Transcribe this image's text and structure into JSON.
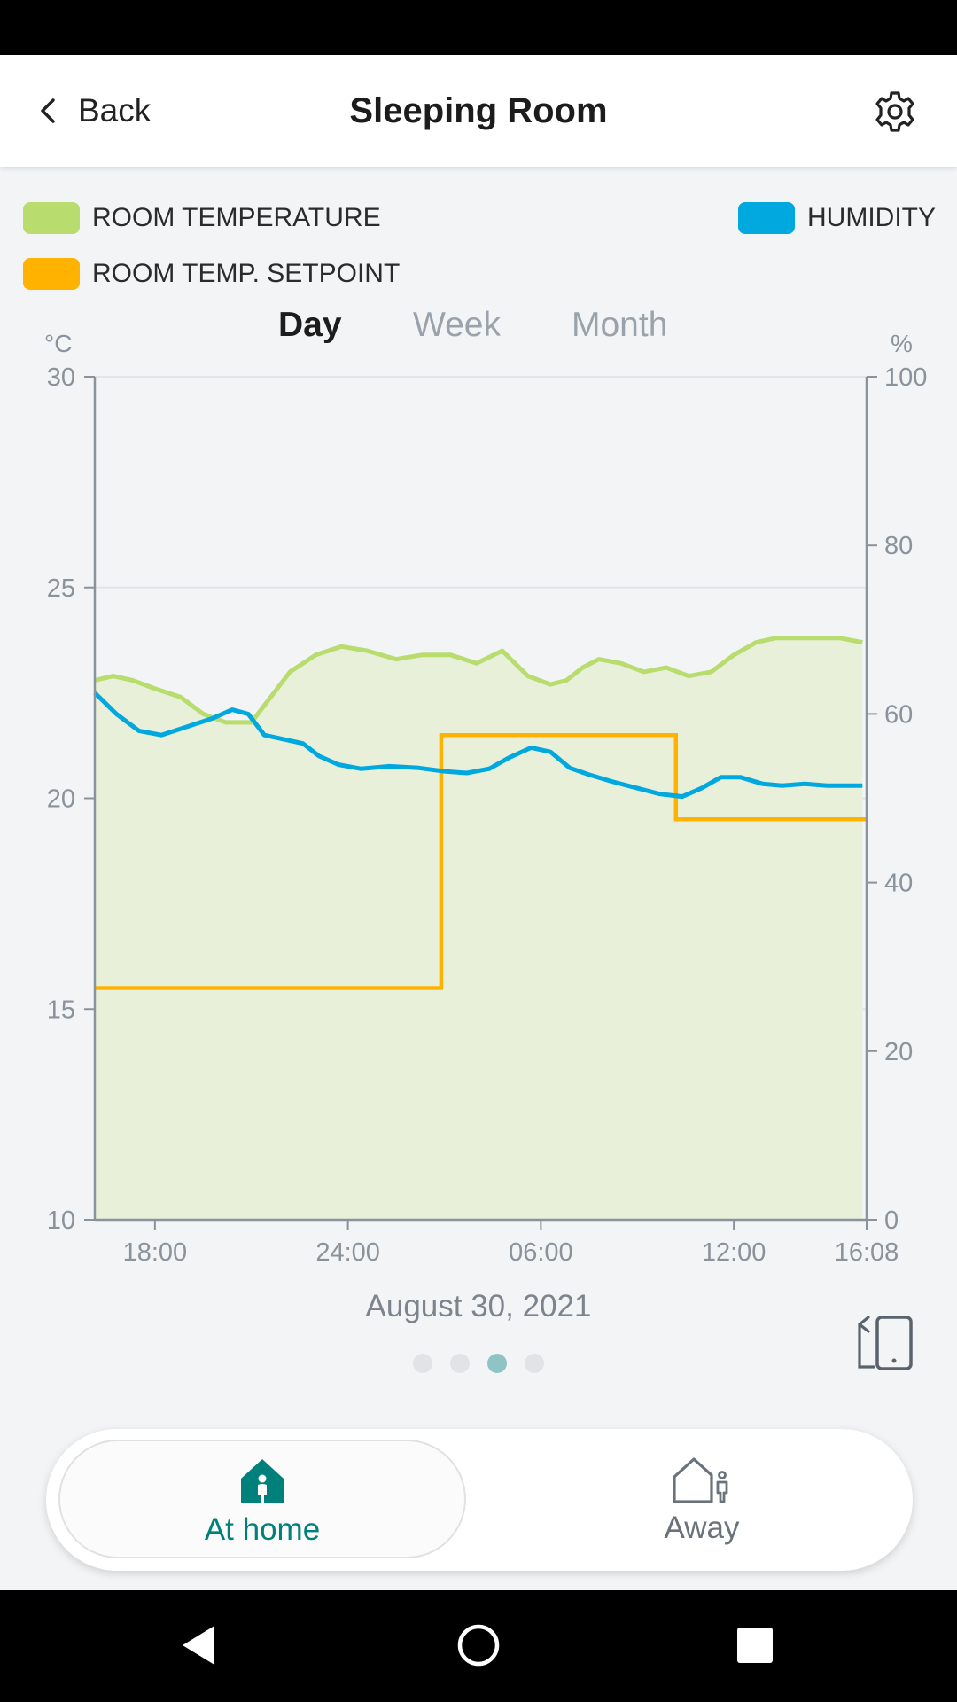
{
  "header": {
    "back_label": "Back",
    "title": "Sleeping Room"
  },
  "legend": {
    "room_temperature": {
      "label": "ROOM TEMPERATURE",
      "color": "#b8dc6e"
    },
    "humidity": {
      "label": "HUMIDITY",
      "color": "#00a8e0"
    },
    "setpoint": {
      "label": "ROOM TEMP. SETPOINT",
      "color": "#ffb300"
    }
  },
  "tabs": [
    {
      "label": "Day",
      "active": true
    },
    {
      "label": "Week",
      "active": false
    },
    {
      "label": "Month",
      "active": false
    }
  ],
  "chart_data": {
    "type": "line",
    "left_axis": {
      "unit": "°C",
      "ylim": [
        10,
        30
      ],
      "ticks": [
        "30",
        "25",
        "20",
        "15",
        "10"
      ]
    },
    "right_axis": {
      "unit": "%",
      "ylim": [
        0,
        100
      ],
      "ticks": [
        "100",
        "80",
        "60",
        "40",
        "20",
        "0"
      ]
    },
    "x_ticks": [
      "18:00",
      "24:00",
      "06:00",
      "12:00",
      "16:08"
    ],
    "x_range_hours": [
      16.13,
      40.13
    ],
    "grid": "horizontal",
    "series": [
      {
        "name": "ROOM TEMPERATURE",
        "axis": "left",
        "color": "#b8dc6e",
        "fill": "#e8f0da",
        "x": [
          16.13,
          16.7,
          17.3,
          18.0,
          18.8,
          19.5,
          20.2,
          21.0,
          21.6,
          22.2,
          23.0,
          23.8,
          24.6,
          25.5,
          26.3,
          27.2,
          28.0,
          28.8,
          29.6,
          30.3,
          30.8,
          31.3,
          31.8,
          32.5,
          33.2,
          33.9,
          34.6,
          35.3,
          36.0,
          36.7,
          37.3,
          37.9,
          38.6,
          39.3,
          40.0
        ],
        "y": [
          22.8,
          22.9,
          22.8,
          22.6,
          22.4,
          22.0,
          21.8,
          21.8,
          22.4,
          23.0,
          23.4,
          23.6,
          23.5,
          23.3,
          23.4,
          23.4,
          23.2,
          23.5,
          22.9,
          22.7,
          22.8,
          23.1,
          23.3,
          23.2,
          23.0,
          23.1,
          22.9,
          23.0,
          23.4,
          23.7,
          23.8,
          23.8,
          23.8,
          23.8,
          23.7
        ]
      },
      {
        "name": "HUMIDITY",
        "axis": "right",
        "color": "#00a8e0",
        "x": [
          16.13,
          16.8,
          17.5,
          18.2,
          19.0,
          19.8,
          20.4,
          20.9,
          21.4,
          22.0,
          22.6,
          23.1,
          23.7,
          24.4,
          25.3,
          26.2,
          27.0,
          27.7,
          28.4,
          29.0,
          29.7,
          30.3,
          30.9,
          31.5,
          32.2,
          33.0,
          33.7,
          34.4,
          35.0,
          35.6,
          36.2,
          36.9,
          37.5,
          38.2,
          38.9,
          40.0
        ],
        "y": [
          62.5,
          60.0,
          58.0,
          57.5,
          58.5,
          59.5,
          60.5,
          60.0,
          57.5,
          57.0,
          56.5,
          55.0,
          54.0,
          53.5,
          53.8,
          53.6,
          53.2,
          53.0,
          53.5,
          54.8,
          56.0,
          55.5,
          53.6,
          52.8,
          52.0,
          51.2,
          50.5,
          50.2,
          51.2,
          52.5,
          52.5,
          51.7,
          51.5,
          51.7,
          51.5,
          51.5
        ]
      },
      {
        "name": "ROOM TEMP. SETPOINT",
        "axis": "left",
        "color": "#ffb300",
        "step": true,
        "x": [
          16.13,
          26.9,
          26.9,
          34.2,
          34.2,
          40.13
        ],
        "y": [
          15.5,
          15.5,
          21.5,
          21.5,
          19.5,
          19.5
        ]
      }
    ]
  },
  "date_label": "August 30, 2021",
  "pager": {
    "count": 4,
    "active_index": 2
  },
  "modes": [
    {
      "label": "At home",
      "active": true,
      "icon": "home-person-icon"
    },
    {
      "label": "Away",
      "active": false,
      "icon": "away-icon"
    }
  ],
  "colors": {
    "accent": "#00807a",
    "inactive": "#6a737c"
  }
}
